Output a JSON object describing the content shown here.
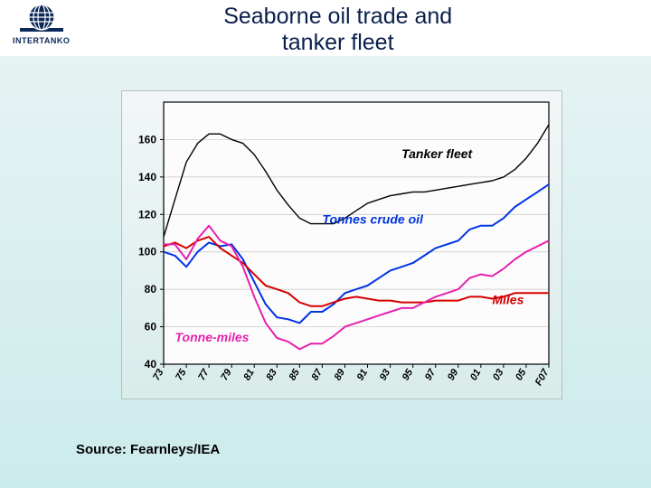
{
  "header": {
    "logo_text": "INTERTANKO",
    "title_line1": "Seaborne oil trade and",
    "title_line2": "tanker fleet"
  },
  "source_line": "Source: Fearnleys/IEA",
  "chart": {
    "type": "line",
    "background_top": "#f3f6f8",
    "background_bottom": "#d8ecea",
    "plot_bg": "#fcfcfc",
    "border_color": "#000000",
    "grid_color": "#c2c2c2",
    "axis_font_size": 12,
    "axis_font_weight": "bold",
    "axis_color": "#000000",
    "xlim": [
      1973,
      2007
    ],
    "ylim": [
      40,
      180
    ],
    "yticks": [
      40,
      60,
      80,
      100,
      120,
      140,
      160
    ],
    "xticks": [
      73,
      75,
      77,
      79,
      81,
      83,
      85,
      87,
      89,
      91,
      93,
      95,
      97,
      99,
      "01",
      "03",
      "05"
    ],
    "xtick_last": "F07",
    "series": [
      {
        "name": "Tanker fleet",
        "label": "Tanker fleet",
        "label_color": "#000000",
        "label_font": "bold italic 14px",
        "label_x": 1994,
        "label_y": 150,
        "color": "#000000",
        "width": 1.4,
        "data": [
          [
            1973,
            108
          ],
          [
            1974,
            128
          ],
          [
            1975,
            148
          ],
          [
            1976,
            158
          ],
          [
            1977,
            163
          ],
          [
            1978,
            163
          ],
          [
            1979,
            160
          ],
          [
            1980,
            158
          ],
          [
            1981,
            152
          ],
          [
            1982,
            143
          ],
          [
            1983,
            133
          ],
          [
            1984,
            125
          ],
          [
            1985,
            118
          ],
          [
            1986,
            115
          ],
          [
            1987,
            115
          ],
          [
            1988,
            115
          ],
          [
            1989,
            118
          ],
          [
            1990,
            122
          ],
          [
            1991,
            126
          ],
          [
            1992,
            128
          ],
          [
            1993,
            130
          ],
          [
            1994,
            131
          ],
          [
            1995,
            132
          ],
          [
            1996,
            132
          ],
          [
            1997,
            133
          ],
          [
            1998,
            134
          ],
          [
            1999,
            135
          ],
          [
            2000,
            136
          ],
          [
            2001,
            137
          ],
          [
            2002,
            138
          ],
          [
            2003,
            140
          ],
          [
            2004,
            144
          ],
          [
            2005,
            150
          ],
          [
            2006,
            158
          ],
          [
            2007,
            168
          ]
        ]
      },
      {
        "name": "Tonnes crude oil",
        "label": "Tonnes crude oil",
        "label_color": "#0033dd",
        "label_font": "bold italic 14px",
        "label_x": 1987,
        "label_y": 115,
        "color": "#0033e8",
        "width": 2.0,
        "data": [
          [
            1973,
            100
          ],
          [
            1974,
            98
          ],
          [
            1975,
            92
          ],
          [
            1976,
            100
          ],
          [
            1977,
            105
          ],
          [
            1978,
            103
          ],
          [
            1979,
            104
          ],
          [
            1980,
            96
          ],
          [
            1981,
            84
          ],
          [
            1982,
            72
          ],
          [
            1983,
            65
          ],
          [
            1984,
            64
          ],
          [
            1985,
            62
          ],
          [
            1986,
            68
          ],
          [
            1987,
            68
          ],
          [
            1988,
            72
          ],
          [
            1989,
            78
          ],
          [
            1990,
            80
          ],
          [
            1991,
            82
          ],
          [
            1992,
            86
          ],
          [
            1993,
            90
          ],
          [
            1994,
            92
          ],
          [
            1995,
            94
          ],
          [
            1996,
            98
          ],
          [
            1997,
            102
          ],
          [
            1998,
            104
          ],
          [
            1999,
            106
          ],
          [
            2000,
            112
          ],
          [
            2001,
            114
          ],
          [
            2002,
            114
          ],
          [
            2003,
            118
          ],
          [
            2004,
            124
          ],
          [
            2005,
            128
          ],
          [
            2006,
            132
          ],
          [
            2007,
            136
          ]
        ]
      },
      {
        "name": "Miles",
        "label": "Miles",
        "label_color": "#d60000",
        "label_font": "bold italic 14px",
        "label_x": 2002,
        "label_y": 72,
        "color": "#d60000",
        "width": 2.0,
        "data": [
          [
            1973,
            103
          ],
          [
            1974,
            105
          ],
          [
            1975,
            102
          ],
          [
            1976,
            106
          ],
          [
            1977,
            108
          ],
          [
            1978,
            102
          ],
          [
            1979,
            98
          ],
          [
            1980,
            94
          ],
          [
            1981,
            88
          ],
          [
            1982,
            82
          ],
          [
            1983,
            80
          ],
          [
            1984,
            78
          ],
          [
            1985,
            73
          ],
          [
            1986,
            71
          ],
          [
            1987,
            71
          ],
          [
            1988,
            73
          ],
          [
            1989,
            75
          ],
          [
            1990,
            76
          ],
          [
            1991,
            75
          ],
          [
            1992,
            74
          ],
          [
            1993,
            74
          ],
          [
            1994,
            73
          ],
          [
            1995,
            73
          ],
          [
            1996,
            73
          ],
          [
            1997,
            74
          ],
          [
            1998,
            74
          ],
          [
            1999,
            74
          ],
          [
            2000,
            76
          ],
          [
            2001,
            76
          ],
          [
            2002,
            75
          ],
          [
            2003,
            76
          ],
          [
            2004,
            78
          ],
          [
            2005,
            78
          ],
          [
            2006,
            78
          ],
          [
            2007,
            78
          ]
        ]
      },
      {
        "name": "Tonne-miles",
        "label": "Tonne-miles",
        "label_color": "#e621ad",
        "label_font": "bold italic 14px",
        "label_x": 1974,
        "label_y": 52,
        "color": "#e621ad",
        "width": 2.0,
        "data": [
          [
            1973,
            104
          ],
          [
            1974,
            104
          ],
          [
            1975,
            96
          ],
          [
            1976,
            107
          ],
          [
            1977,
            114
          ],
          [
            1978,
            106
          ],
          [
            1979,
            103
          ],
          [
            1980,
            92
          ],
          [
            1981,
            76
          ],
          [
            1982,
            62
          ],
          [
            1983,
            54
          ],
          [
            1984,
            52
          ],
          [
            1985,
            48
          ],
          [
            1986,
            51
          ],
          [
            1987,
            51
          ],
          [
            1988,
            55
          ],
          [
            1989,
            60
          ],
          [
            1990,
            62
          ],
          [
            1991,
            64
          ],
          [
            1992,
            66
          ],
          [
            1993,
            68
          ],
          [
            1994,
            70
          ],
          [
            1995,
            70
          ],
          [
            1996,
            73
          ],
          [
            1997,
            76
          ],
          [
            1998,
            78
          ],
          [
            1999,
            80
          ],
          [
            2000,
            86
          ],
          [
            2001,
            88
          ],
          [
            2002,
            87
          ],
          [
            2003,
            91
          ],
          [
            2004,
            96
          ],
          [
            2005,
            100
          ],
          [
            2006,
            103
          ],
          [
            2007,
            106
          ]
        ]
      }
    ]
  }
}
